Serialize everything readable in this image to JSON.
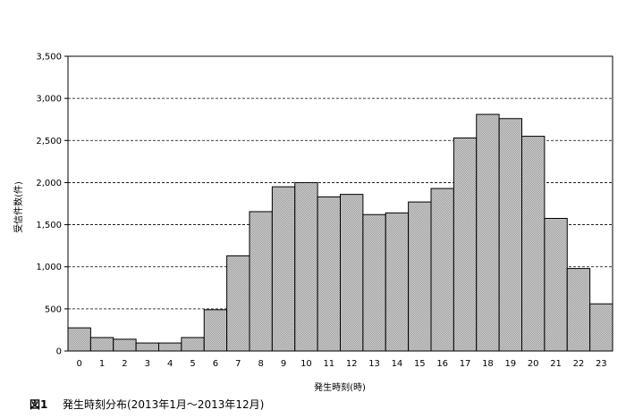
{
  "chart_data": {
    "type": "bar",
    "categories": [
      "0",
      "1",
      "2",
      "3",
      "4",
      "5",
      "6",
      "7",
      "8",
      "9",
      "10",
      "11",
      "12",
      "13",
      "14",
      "15",
      "16",
      "17",
      "18",
      "19",
      "20",
      "21",
      "22",
      "23"
    ],
    "values": [
      275,
      160,
      140,
      95,
      95,
      160,
      490,
      1130,
      1655,
      1950,
      2000,
      1830,
      1860,
      1620,
      1640,
      1770,
      1930,
      2530,
      2810,
      2760,
      2550,
      1575,
      980,
      560
    ],
    "ylim": [
      0,
      3500
    ],
    "yticks": [
      0,
      500,
      1000,
      1500,
      2000,
      2500,
      3000,
      3500
    ],
    "ytick_labels": [
      "0",
      "500",
      "1,000",
      "1,500",
      "2,000",
      "2,500",
      "3,000",
      "3,500"
    ],
    "xlabel": "発生時刻(時)",
    "ylabel": "受信件数(件)",
    "grid": "horizontal-dashed",
    "bar_color": "#c8c8c8"
  },
  "caption": {
    "number": "図1",
    "text": "発生時刻分布(2013年1月～2013年12月)"
  }
}
